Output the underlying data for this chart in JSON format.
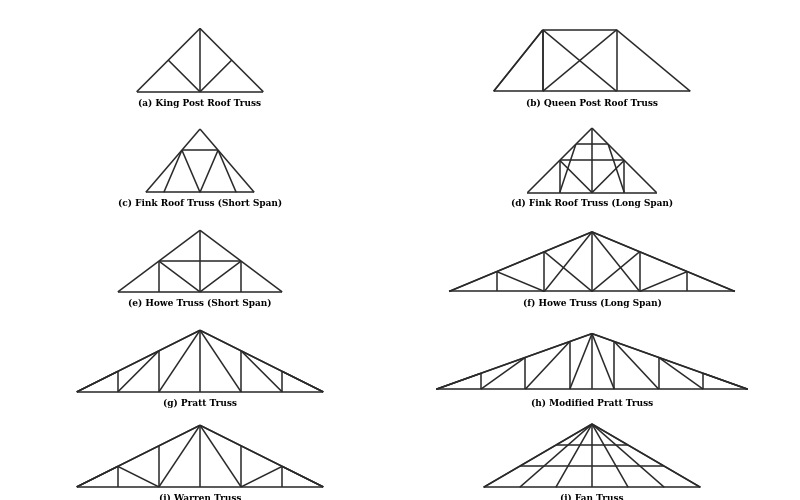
{
  "line_color": "#2a2a2a",
  "line_width": 1.1,
  "label_fontsize": 6.5,
  "trusses": [
    {
      "label": "(a) King Post Roof Truss",
      "type": "king_post"
    },
    {
      "label": "(b) Queen Post Roof Truss",
      "type": "queen_post"
    },
    {
      "label": "(c) Fink Roof Truss (Short Span)",
      "type": "fink_short"
    },
    {
      "label": "(d) Fink Roof Truss (Long Span)",
      "type": "fink_long"
    },
    {
      "label": "(e) Howe Truss (Short Span)",
      "type": "howe_short"
    },
    {
      "label": "(f) Howe Truss (Long Span)",
      "type": "howe_long"
    },
    {
      "label": "(g) Pratt Truss",
      "type": "pratt"
    },
    {
      "label": "(h) Modified Pratt Truss",
      "type": "modified_pratt"
    },
    {
      "label": "(i) Warren Truss",
      "type": "warren"
    },
    {
      "label": "(j) Fan Truss",
      "type": "fan"
    }
  ]
}
